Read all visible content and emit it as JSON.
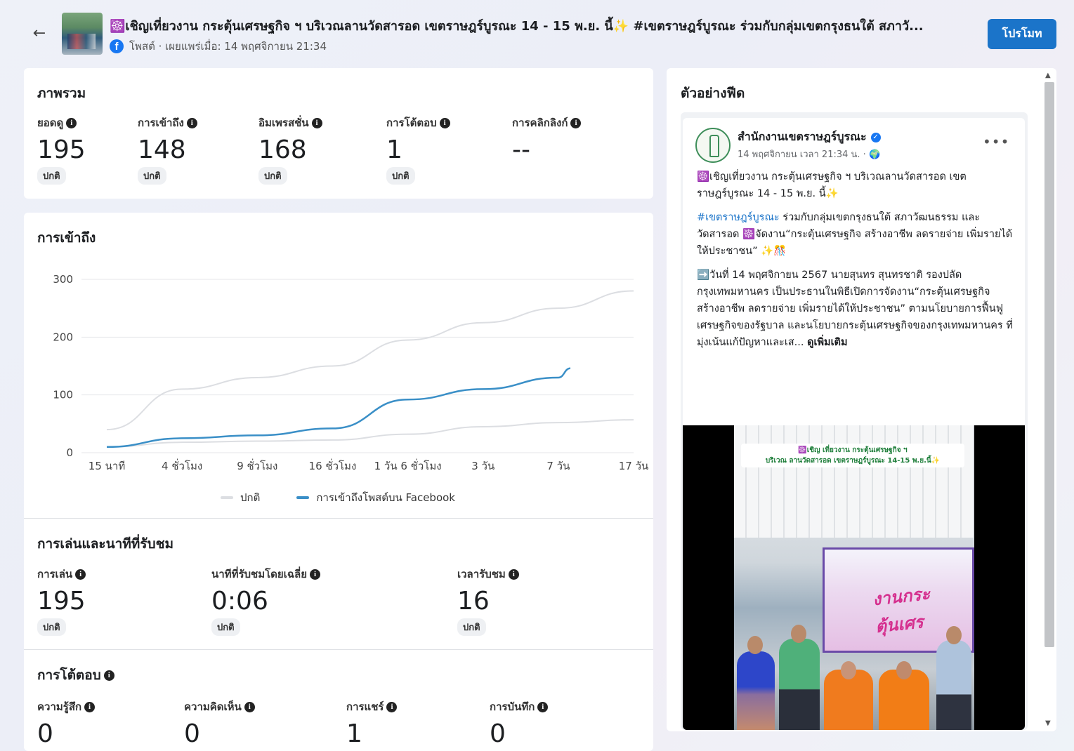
{
  "header": {
    "title": "☸️เชิญเที่ยวงาน กระตุ้นเศรษฐกิจ ฯ บริเวณลานวัดสารอด เขตราษฎร์บูรณะ 14 - 15 พ.ย. นี้✨ #เขตราษฎร์บูรณะ ร่วมกับกลุ่มเขตกรุงธนใต้ สภาวั...",
    "meta": "โพสต์ · เผยแพร่เมื่อ: 14 พฤศจิกายน 21:34",
    "promote_label": "โปรโมท",
    "back_icon": "←"
  },
  "overview": {
    "title": "ภาพรวม",
    "metrics": [
      {
        "label": "ยอดดู",
        "value": "195",
        "badge": "ปกติ"
      },
      {
        "label": "การเข้าถึง",
        "value": "148",
        "badge": "ปกติ"
      },
      {
        "label": "อิมเพรสชั่น",
        "value": "168",
        "badge": "ปกติ"
      },
      {
        "label": "การโต้ตอบ",
        "value": "1",
        "badge": "ปกติ"
      },
      {
        "label": "การคลิกลิงก์",
        "value": "--",
        "badge": ""
      }
    ]
  },
  "reach": {
    "title": "การเข้าถึง",
    "legend_normal": "ปกติ",
    "legend_reach": "การเข้าถึงโพสต์บน Facebook"
  },
  "chart_data": {
    "type": "line",
    "x": [
      "15 นาที",
      "4 ชั่วโมง",
      "9 ชั่วโมง",
      "16 ชั่วโมง",
      "1 วัน 6 ชั่วโมง",
      "3 วัน",
      "7 วัน",
      "17 วัน"
    ],
    "ylim": [
      0,
      300
    ],
    "yticks": [
      0,
      100,
      200,
      300
    ],
    "grid": true,
    "legend_position": "bottom",
    "series": [
      {
        "name": "ปกติ",
        "color": "#dcdee2",
        "role": "upper",
        "values": [
          40,
          110,
          130,
          150,
          195,
          225,
          250,
          280
        ]
      },
      {
        "name": "ปกติ",
        "color": "#dcdee2",
        "role": "lower",
        "values": [
          10,
          18,
          20,
          22,
          32,
          45,
          52,
          57
        ]
      },
      {
        "name": "การเข้าถึงโพสต์บน Facebook",
        "color": "#3a8fc7",
        "values": [
          10,
          25,
          30,
          42,
          92,
          110,
          130,
          146
        ],
        "end_fraction": 0.88
      }
    ]
  },
  "plays": {
    "title": "การเล่นและนาทีที่รับชม",
    "metrics": [
      {
        "label": "การเล่น",
        "value": "195",
        "badge": "ปกติ"
      },
      {
        "label": "นาทีที่รับชมโดยเฉลี่ย",
        "value": "0:06",
        "badge": "ปกติ"
      },
      {
        "label": "เวลารับชม",
        "value": "16",
        "badge": "ปกติ"
      }
    ]
  },
  "interactions": {
    "title": "การโต้ตอบ",
    "metrics": [
      {
        "label": "ความรู้สึก",
        "value": "0"
      },
      {
        "label": "ความคิดเห็น",
        "value": "0"
      },
      {
        "label": "การแชร์",
        "value": "1"
      },
      {
        "label": "การบันทึก",
        "value": "0"
      }
    ]
  },
  "feed": {
    "title": "ตัวอย่างฟีด",
    "page_name": "สำนักงานเขตราษฎร์บูรณะ",
    "date": "14 พฤศจิกายน เวลา 21:34 น. · 🌍",
    "p1": "☸️เชิญเที่ยวงาน กระตุ้นเศรษฐกิจ ฯ บริเวณลานวัดสารอด เขตราษฎร์บูรณะ 14 - 15 พ.ย. นี้✨",
    "p2_hashtag": "#เขตราษฎร์บูรณะ",
    "p2_rest": " ร่วมกับกลุ่มเขตกรุงธนใต้ สภาวัฒนธรรม และวัดสารอด ☸️จัดงาน“กระตุ้นเศรษฐกิจ สร้างอาชีพ ลดรายจ่าย เพิ่มรายได้ให้ประชาชน” ✨🎊",
    "p3": "➡️วันที่ 14 พฤศจิกายน 2567 นายสุนทร สุนทรชาติ รองปลัดกรุงเทพมหานคร เป็นประธานในพิธีเปิดการจัดงาน“กระตุ้นเศรษฐกิจ สร้างอาชีพ ลดรายจ่าย เพิ่มรายได้ให้ประชาชน” ตามนโยบายการฟื้นฟูเศรษฐกิจของรัฐบาล และนโยบายกระตุ้นเศรษฐกิจของกรุงเทพมหานคร ที่มุ่งเน้นแก้ปัญหาและเส...",
    "see_more": "ดูเพิ่มเติม",
    "banner_line1": "☸️เชิญ เที่ยวงาน กระตุ้นเศรษฐกิจ ฯ",
    "banner_line2": "บริเวณ ลานวัดสารอด เขตราษฎร์บูรณะ 14-15 พ.ย.นี้✨",
    "stage_text": "งานกระตุ้นเศร",
    "more_icon": "•••"
  }
}
